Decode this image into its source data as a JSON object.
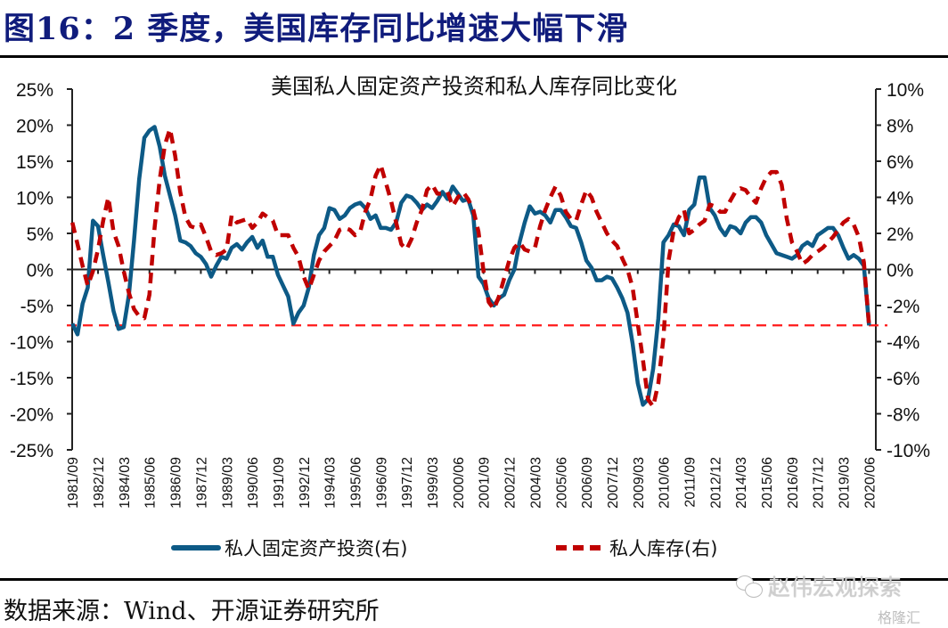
{
  "figure": {
    "title": "图16：2 季度，美国库存同比增速大幅下滑",
    "source": "数据来源：Wind、开源证券研究所",
    "watermark": "赵伟宏观探索",
    "watermark_icon": "wechat-icon",
    "watermark2": "格隆汇"
  },
  "colors": {
    "title": "#101c7c",
    "investment": "#0d5a86",
    "inventory": "#c00000",
    "reference": "#ff1a1a"
  },
  "chart_data": {
    "type": "line",
    "title": "美国私人固定资产投资和私人库存同比变化",
    "xlabel": "",
    "ylabel_left": "",
    "ylabel_right": "",
    "x_start": "1981/09",
    "x_end": "2020/06",
    "frequency": "quarterly",
    "x_tick_labels": [
      "1981/09",
      "1982/12",
      "1984/03",
      "1985/06",
      "1986/09",
      "1987/12",
      "1989/03",
      "1990/06",
      "1991/09",
      "1992/12",
      "1994/03",
      "1995/06",
      "1996/09",
      "1997/12",
      "1999/03",
      "2000/06",
      "2001/09",
      "2002/12",
      "2004/03",
      "2005/06",
      "2006/09",
      "2007/12",
      "2009/03",
      "2010/06",
      "2011/09",
      "2012/12",
      "2014/03",
      "2015/06",
      "2016/09",
      "2017/12",
      "2019/03",
      "2020/06"
    ],
    "y_left": {
      "range": [
        -25,
        25
      ],
      "ticks": [
        "25%",
        "20%",
        "15%",
        "10%",
        "5%",
        "0%",
        "-5%",
        "-10%",
        "-15%",
        "-20%",
        "-25%"
      ],
      "tick_values": [
        25,
        20,
        15,
        10,
        5,
        0,
        -5,
        -10,
        -15,
        -20,
        -25
      ]
    },
    "y_right": {
      "range": [
        -10,
        10
      ],
      "ticks": [
        "10%",
        "8%",
        "6%",
        "4%",
        "2%",
        "0%",
        "-2%",
        "-4%",
        "-6%",
        "-8%",
        "-10%"
      ],
      "tick_values": [
        10,
        8,
        6,
        4,
        2,
        0,
        -2,
        -4,
        -6,
        -8,
        -10
      ]
    },
    "grid": false,
    "legend_position": "bottom",
    "reference_line": {
      "axis": "right",
      "value": -3.1,
      "style": "dashed"
    },
    "series": [
      {
        "name": "私人固定资产投资(右)",
        "axis": "right",
        "style": "solid",
        "values": [
          -3.0,
          -3.6,
          -1.9,
          -1.0,
          2.7,
          2.4,
          0.8,
          -0.7,
          -2.3,
          -3.3,
          -3.2,
          -1.4,
          1.6,
          5.0,
          7.3,
          7.7,
          7.9,
          6.8,
          5.2,
          4.1,
          3.0,
          1.6,
          1.5,
          1.3,
          0.9,
          0.7,
          0.3,
          -0.4,
          0.2,
          0.7,
          0.6,
          1.2,
          1.4,
          1.1,
          1.5,
          1.8,
          1.2,
          1.6,
          0.7,
          0.7,
          -0.3,
          -0.9,
          -1.5,
          -3.0,
          -2.4,
          -2.0,
          -1.0,
          0.8,
          1.9,
          2.3,
          3.4,
          3.3,
          2.8,
          3.0,
          3.4,
          3.6,
          3.7,
          3.4,
          2.8,
          3.0,
          2.3,
          2.3,
          2.2,
          2.6,
          3.7,
          4.1,
          4.0,
          3.7,
          3.3,
          3.6,
          3.4,
          3.8,
          4.3,
          3.9,
          4.6,
          4.2,
          3.8,
          3.9,
          3.0,
          -0.4,
          -0.8,
          -1.6,
          -2.0,
          -1.6,
          -1.4,
          -0.6,
          0.0,
          1.5,
          2.6,
          3.5,
          3.1,
          3.2,
          3.0,
          2.6,
          3.3,
          3.3,
          2.9,
          2.4,
          2.3,
          1.5,
          0.5,
          0.1,
          -0.6,
          -0.6,
          -0.4,
          -0.5,
          -1.0,
          -1.6,
          -2.4,
          -4.1,
          -6.3,
          -7.5,
          -7.2,
          -5.5,
          -2.7,
          1.5,
          1.9,
          2.5,
          2.4,
          1.9,
          3.3,
          3.6,
          5.1,
          5.1,
          3.4,
          3.0,
          2.3,
          1.9,
          2.4,
          2.3,
          2.0,
          2.6,
          2.9,
          2.9,
          2.6,
          1.9,
          1.4,
          0.9,
          0.8,
          0.7,
          0.6,
          0.8,
          1.3,
          1.5,
          1.3,
          1.9,
          2.1,
          2.3,
          2.3,
          1.9,
          1.2,
          0.6,
          0.8,
          0.6,
          0.2,
          -3.1
        ]
      },
      {
        "name": "私人库存(右)",
        "axis": "right",
        "style": "dashed",
        "values": [
          2.6,
          1.4,
          0.2,
          -0.9,
          -0.1,
          1.1,
          2.7,
          4.0,
          2.1,
          1.3,
          -0.1,
          -1.3,
          -2.2,
          -2.6,
          -2.7,
          -1.4,
          2.3,
          5.0,
          6.9,
          7.8,
          6.3,
          4.3,
          2.9,
          2.4,
          2.3,
          2.5,
          1.8,
          1.0,
          0.8,
          0.9,
          1.1,
          3.0,
          2.6,
          2.7,
          2.8,
          2.3,
          2.6,
          3.1,
          2.9,
          2.7,
          1.9,
          1.9,
          1.9,
          1.2,
          0.7,
          -0.4,
          -1.1,
          -0.3,
          0.5,
          1.0,
          1.3,
          1.6,
          2.2,
          2.3,
          2.2,
          1.9,
          2.1,
          3.2,
          3.9,
          5.2,
          5.8,
          4.8,
          3.8,
          2.6,
          1.4,
          1.1,
          1.7,
          2.6,
          3.3,
          4.4,
          4.7,
          4.2,
          4.2,
          4.3,
          3.5,
          4.0,
          4.3,
          3.9,
          3.3,
          2.1,
          -0.1,
          -1.8,
          -2.2,
          -1.5,
          -0.5,
          0.5,
          1.2,
          1.5,
          1.1,
          1.0,
          1.2,
          2.4,
          3.3,
          4.0,
          4.6,
          4.1,
          3.2,
          2.8,
          2.7,
          3.6,
          4.4,
          4.0,
          3.2,
          2.6,
          2.0,
          1.6,
          1.3,
          0.6,
          0.0,
          -1.0,
          -3.0,
          -5.0,
          -7.2,
          -7.6,
          -6.3,
          -3.8,
          0.5,
          2.2,
          2.9,
          3.3,
          2.0,
          2.2,
          2.5,
          2.7,
          3.6,
          3.5,
          3.2,
          3.2,
          3.8,
          4.3,
          4.5,
          4.4,
          4.0,
          3.7,
          4.5,
          5.1,
          5.4,
          5.4,
          4.7,
          2.8,
          1.5,
          1.0,
          0.3,
          0.5,
          0.8,
          1.0,
          1.2,
          1.5,
          1.8,
          2.2,
          2.6,
          2.8,
          2.5,
          1.8,
          0.4,
          -3.1
        ]
      }
    ]
  }
}
